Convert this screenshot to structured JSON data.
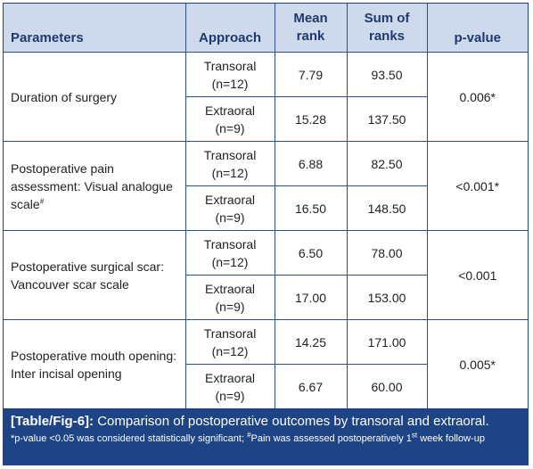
{
  "table": {
    "headers": {
      "parameters": "Parameters",
      "approach": "Approach",
      "mean_rank_1": "Mean",
      "mean_rank_2": "rank",
      "sum_ranks_1": "Sum of",
      "sum_ranks_2": "ranks",
      "p_value": "p-value"
    },
    "groups": [
      {
        "parameter": "Duration of surgery",
        "parameter_mark": "",
        "p_value": "0.006*",
        "rows": [
          {
            "approach_1": "Transoral",
            "approach_2": "(n=12)",
            "mean_rank": "7.79",
            "sum_ranks": "93.50"
          },
          {
            "approach_1": "Extraoral",
            "approach_2": "(n=9)",
            "mean_rank": "15.28",
            "sum_ranks": "137.50"
          }
        ]
      },
      {
        "parameter": "Postoperative pain assessment: Visual analogue scale",
        "parameter_mark": "#",
        "p_value": "<0.001*",
        "rows": [
          {
            "approach_1": "Transoral",
            "approach_2": "(n=12)",
            "mean_rank": "6.88",
            "sum_ranks": "82.50"
          },
          {
            "approach_1": "Extraoral",
            "approach_2": "(n=9)",
            "mean_rank": "16.50",
            "sum_ranks": "148.50"
          }
        ]
      },
      {
        "parameter": "Postoperative surgical scar: Vancouver scar scale",
        "parameter_mark": "",
        "p_value": "<0.001",
        "rows": [
          {
            "approach_1": "Transoral",
            "approach_2": "(n=12)",
            "mean_rank": "6.50",
            "sum_ranks": "78.00"
          },
          {
            "approach_1": "Extraoral",
            "approach_2": "(n=9)",
            "mean_rank": "17.00",
            "sum_ranks": "153.00"
          }
        ]
      },
      {
        "parameter": "Postoperative mouth opening: Inter incisal opening",
        "parameter_mark": "",
        "p_value": "0.005*",
        "rows": [
          {
            "approach_1": "Transoral",
            "approach_2": "(n=12)",
            "mean_rank": "14.25",
            "sum_ranks": "171.00"
          },
          {
            "approach_1": "Extraoral",
            "approach_2": "(n=9)",
            "mean_rank": "6.67",
            "sum_ranks": "60.00"
          }
        ]
      }
    ]
  },
  "caption": {
    "label": "[Table/Fig-6]:",
    "text": "Comparison of postoperative outcomes by transoral and extraoral.",
    "note_part1": "*p-value <0.05 was considered statistically significant; ",
    "note_mark": "#",
    "note_part2": "Pain was assessed postoperatively 1",
    "note_sup": "st",
    "note_part3": " week follow-up"
  },
  "colors": {
    "header_bg": "#cfd9ec",
    "header_text": "#1d3a6e",
    "border": "#2d4f88",
    "caption_bg": "#1f4486"
  }
}
